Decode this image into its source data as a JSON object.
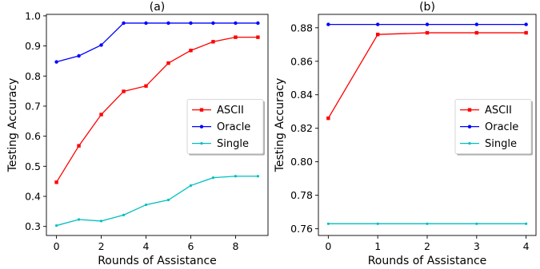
{
  "chart_data": [
    {
      "type": "line",
      "title": "(a)",
      "xlabel": "Rounds of Assistance",
      "ylabel": "Testing Accuracy",
      "xlim": [
        -0.45,
        9.45
      ],
      "ylim": [
        0.27,
        1.005
      ],
      "xticks": [
        0,
        2,
        4,
        6,
        8
      ],
      "yticks": [
        0.3,
        0.4,
        0.5,
        0.6,
        0.7,
        0.8,
        0.9,
        1.0
      ],
      "ytick_labels": [
        "0.3",
        "0.4",
        "0.5",
        "0.6",
        "0.7",
        "0.8",
        "0.9",
        "1.0"
      ],
      "grid": false,
      "legend_position": "center-right",
      "x": [
        0,
        1,
        2,
        3,
        4,
        5,
        6,
        7,
        8,
        9
      ],
      "series": [
        {
          "name": "ASCII",
          "color": "#ff0000",
          "marker": "square",
          "values": [
            0.447,
            0.568,
            0.672,
            0.749,
            0.767,
            0.843,
            0.885,
            0.914,
            0.929,
            0.929
          ]
        },
        {
          "name": "Oracle",
          "color": "#0000ff",
          "marker": "circle",
          "values": [
            0.847,
            0.867,
            0.903,
            0.976,
            0.976,
            0.976,
            0.976,
            0.976,
            0.976,
            0.976
          ]
        },
        {
          "name": "Single",
          "color": "#00bfbf",
          "marker": "star",
          "values": [
            0.303,
            0.323,
            0.318,
            0.338,
            0.372,
            0.388,
            0.436,
            0.462,
            0.467,
            0.467
          ]
        }
      ]
    },
    {
      "type": "line",
      "title": "(b)",
      "xlabel": "Rounds of Assistance",
      "ylabel": "Testing Accuracy",
      "xlim": [
        -0.2,
        4.2
      ],
      "ylim": [
        0.756,
        0.888
      ],
      "xticks": [
        0,
        1,
        2,
        3,
        4
      ],
      "yticks": [
        0.76,
        0.78,
        0.8,
        0.82,
        0.84,
        0.86,
        0.88
      ],
      "ytick_labels": [
        "0.76",
        "0.78",
        "0.80",
        "0.82",
        "0.84",
        "0.86",
        "0.88"
      ],
      "grid": false,
      "legend_position": "center-right",
      "x": [
        0,
        1,
        2,
        3,
        4
      ],
      "series": [
        {
          "name": "ASCII",
          "color": "#ff0000",
          "marker": "square",
          "values": [
            0.826,
            0.876,
            0.877,
            0.877,
            0.877
          ]
        },
        {
          "name": "Oracle",
          "color": "#0000ff",
          "marker": "circle",
          "values": [
            0.882,
            0.882,
            0.882,
            0.882,
            0.882
          ]
        },
        {
          "name": "Single",
          "color": "#00bfbf",
          "marker": "star",
          "values": [
            0.763,
            0.763,
            0.763,
            0.763,
            0.763
          ]
        }
      ]
    }
  ]
}
